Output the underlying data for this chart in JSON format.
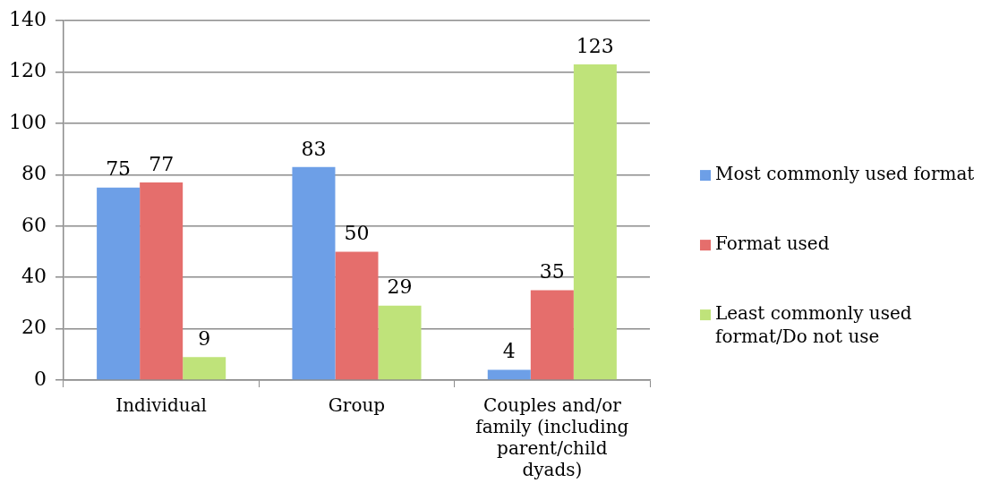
{
  "chart_data": {
    "type": "bar",
    "categories": [
      "Individual",
      "Group",
      "Couples and/or family (including parent/child dyads)"
    ],
    "series": [
      {
        "name": "Most commonly used format",
        "color": "#6d9fe7",
        "values": [
          75,
          83,
          4
        ]
      },
      {
        "name": "Format used",
        "color": "#e56e6c",
        "values": [
          77,
          50,
          35
        ]
      },
      {
        "name": "Least commonly used format/Do not use",
        "color": "#bfe37a",
        "values": [
          9,
          29,
          123
        ]
      }
    ],
    "ylim": [
      0,
      140
    ],
    "yticks": [
      0,
      20,
      40,
      60,
      80,
      100,
      120,
      140
    ],
    "grid": "y",
    "legend": "right",
    "data_labels": true
  }
}
